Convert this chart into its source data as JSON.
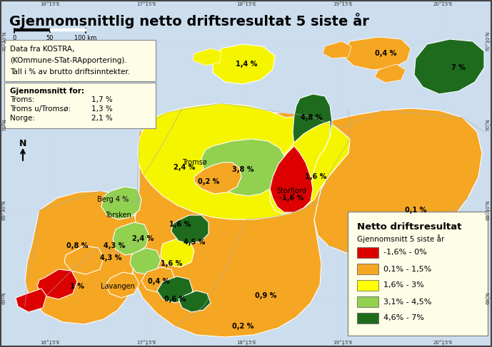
{
  "title": "Gjennomsnittlig netto driftsresultat 5 siste år",
  "background_color": "#b8d4e8",
  "map_background": "#b8d4e8",
  "info_box_text1": "Data fra KOSTRA,",
  "info_box_text2": "(KOmmune-STat-RApportering).",
  "info_box_text3": "Tall i % av brutto driftsinntekter.",
  "avg_box_title": "Gjennomsnitt for:",
  "avg_entries": [
    [
      "Troms:",
      "1,7 %"
    ],
    [
      "Troms u/Tromsø:",
      "1,3 %"
    ],
    [
      "Norge:",
      "2,1 %"
    ]
  ],
  "legend_title": "Netto driftsresultat",
  "legend_subtitle": "Gjennomsnitt 5 siste år",
  "legend_entries": [
    [
      "-1,6% - 0%",
      "#dd0000"
    ],
    [
      "0,1% - 1,5%",
      "#f5a623"
    ],
    [
      "1,6% - 3%",
      "#ffff00"
    ],
    [
      "3,1% - 4,5%",
      "#92d050"
    ],
    [
      "4,6% - 7%",
      "#1e6b1e"
    ]
  ],
  "legend_bg": "#fdfde8",
  "info_bg": "#fdfde8",
  "avg_bg": "#fdfde8",
  "title_fontsize": 14,
  "outer_border": "#444444",
  "land_bg": "#dde8c0"
}
